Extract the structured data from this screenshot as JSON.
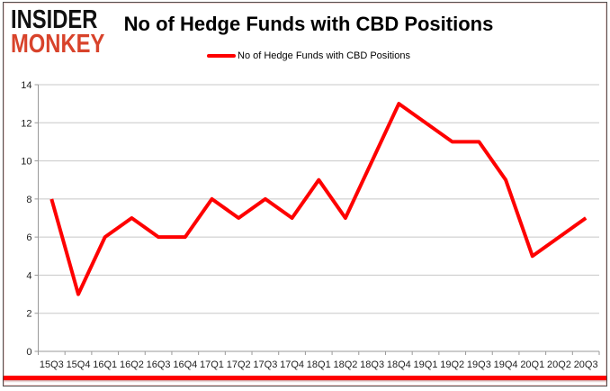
{
  "logo": {
    "line1": "INSIDER",
    "line2": "MONKEY",
    "color1": "#111111",
    "color2": "#d8432b"
  },
  "header": {
    "title": "No of Hedge Funds with CBD Positions",
    "legend_label": "No of Hedge Funds with CBD Positions"
  },
  "colors": {
    "line": "#fe0000",
    "gridline": "#c8c8c8",
    "axis": "#999999",
    "tick_label": "#1f1f1f",
    "frame_border": "#4d4d4d",
    "bottom_bar": "#fe0000"
  },
  "chart_data": {
    "type": "line",
    "title": "No of Hedge Funds with CBD Positions",
    "xlabel": "",
    "ylabel": "",
    "ylim": [
      0,
      14
    ],
    "yticks": [
      0,
      2,
      4,
      6,
      8,
      10,
      12,
      14
    ],
    "grid": "horizontal",
    "legend_position": "top-center",
    "categories": [
      "15Q3",
      "15Q4",
      "16Q1",
      "16Q2",
      "16Q3",
      "16Q4",
      "17Q1",
      "17Q2",
      "17Q3",
      "17Q4",
      "18Q1",
      "18Q2",
      "18Q3",
      "18Q4",
      "19Q1",
      "19Q2",
      "19Q3",
      "19Q4",
      "20Q1",
      "20Q2",
      "20Q3"
    ],
    "series": [
      {
        "name": "No of Hedge Funds with CBD Positions",
        "color": "#fe0000",
        "values": [
          8,
          3,
          6,
          7,
          6,
          6,
          8,
          7,
          8,
          7,
          9,
          7,
          10,
          13,
          12,
          11,
          11,
          9,
          5,
          6,
          7
        ]
      }
    ]
  }
}
